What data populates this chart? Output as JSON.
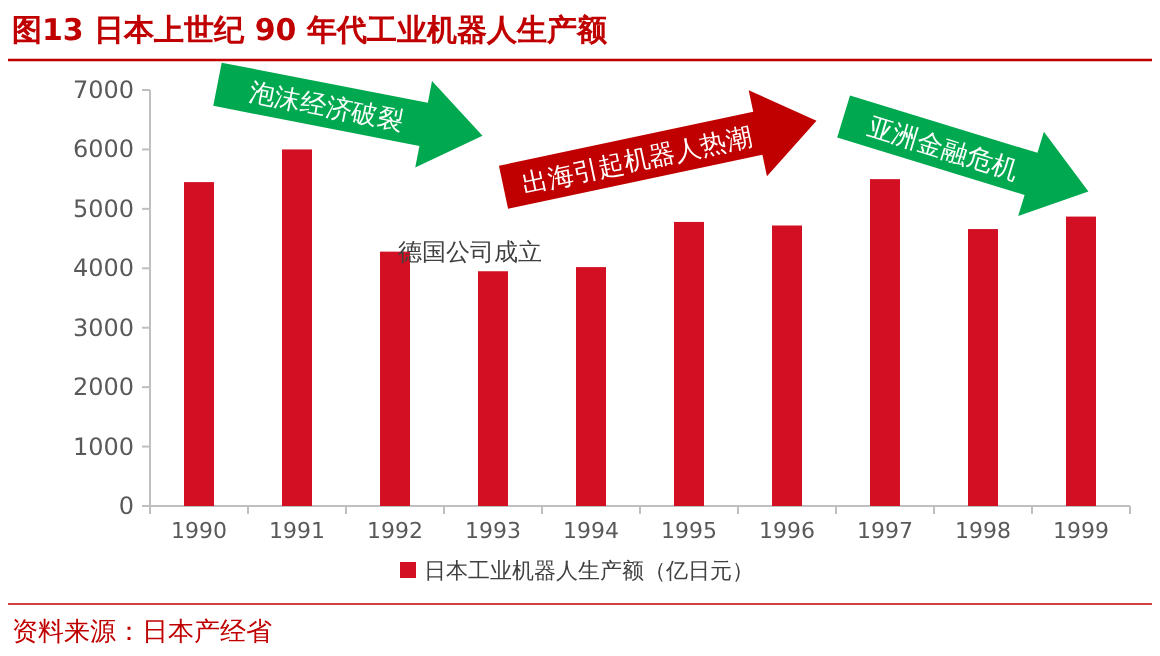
{
  "chart_data": {
    "type": "bar",
    "title": "图13  日本上世纪 90 年代工业机器人生产额",
    "categories": [
      "1990",
      "1991",
      "1992",
      "1993",
      "1994",
      "1995",
      "1996",
      "1997",
      "1998",
      "1999"
    ],
    "series": [
      {
        "name": "日本工业机器人生产额（亿日元）",
        "color": "#d20f23",
        "values": [
          5450,
          6000,
          4280,
          3950,
          4020,
          4780,
          4720,
          5500,
          4660,
          4870
        ]
      }
    ],
    "ylim": [
      0,
      7000
    ],
    "yticks": [
      0,
      1000,
      2000,
      3000,
      4000,
      5000,
      6000,
      7000
    ],
    "legend": "bottom",
    "annotations": [
      "泡沫经济破裂",
      "出海引起机器人热潮",
      "亚洲金融危机",
      "德国公司成立",
      "资料来源：日本产经省"
    ]
  }
}
